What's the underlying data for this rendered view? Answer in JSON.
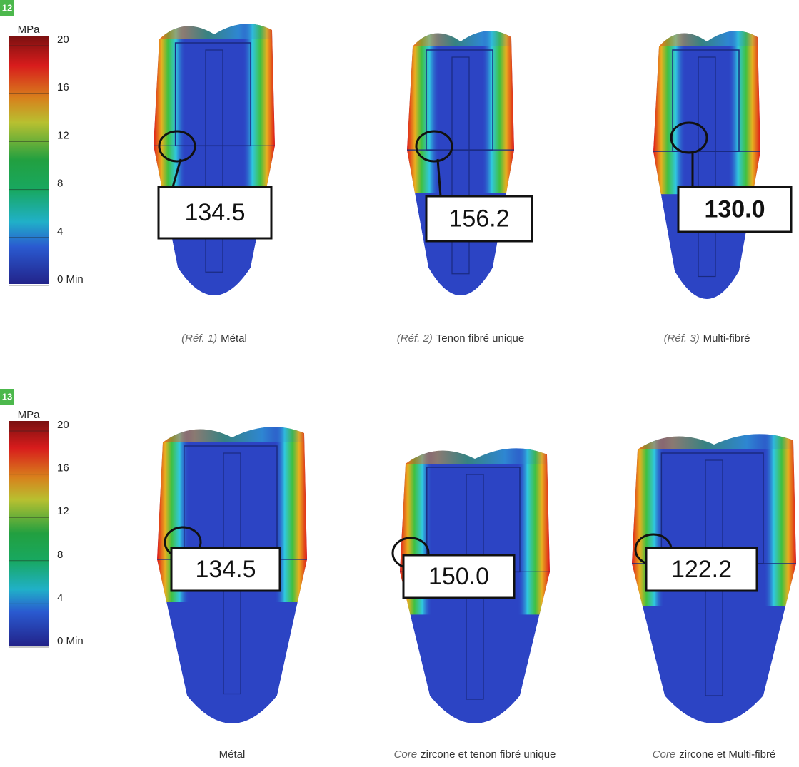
{
  "figures": [
    {
      "number": "12",
      "legend": {
        "unit": "MPa",
        "ticks": [
          20,
          16,
          12,
          8,
          4,
          {
            "value": 0,
            "label": "0 Min"
          }
        ]
      },
      "panels": [
        {
          "value": "134.5",
          "caption": {
            "ref": "(Réf. 1)",
            "label": "Métal"
          }
        },
        {
          "value": "156.2",
          "caption": {
            "ref": "(Réf. 2)",
            "label": "Tenon fibré unique"
          }
        },
        {
          "value": "130.0",
          "caption": {
            "ref": "(Réf. 3)",
            "label": "Multi-fibré"
          }
        }
      ]
    },
    {
      "number": "13",
      "legend": {
        "unit": "MPa",
        "ticks": [
          20,
          16,
          12,
          8,
          4,
          {
            "value": 0,
            "label": "0 Min"
          }
        ]
      },
      "panels": [
        {
          "value": "134.5",
          "caption": {
            "label": "Métal"
          }
        },
        {
          "value": "150.0",
          "caption": {
            "emphasis": "Core",
            "label": "zircone et tenon fibré unique"
          }
        },
        {
          "value": "122.2",
          "caption": {
            "emphasis": "Core",
            "label": "zircone et Multi-fibré"
          }
        }
      ]
    }
  ]
}
